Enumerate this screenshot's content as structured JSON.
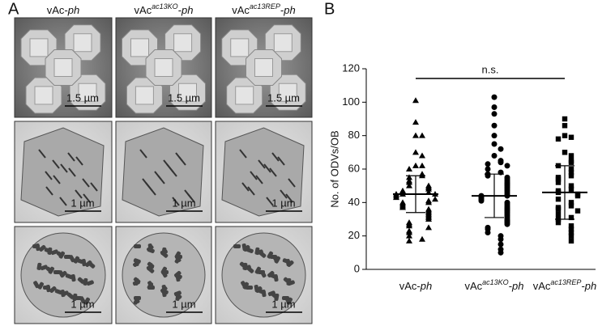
{
  "panel_a": {
    "label": "A",
    "columns": [
      {
        "base": "vAc",
        "suffix": "-",
        "italic": "ph"
      },
      {
        "base": "vAc",
        "sup": "ac13KO",
        "suffix": "-",
        "italic": "ph"
      },
      {
        "base": "vAc",
        "sup": "ac13REP",
        "suffix": "-",
        "italic": "ph"
      }
    ],
    "scale_bars": [
      "1.5 µm",
      "1 µm",
      "1 µm"
    ]
  },
  "chart_data": {
    "type": "scatter",
    "panel_label": "B",
    "y_label": "No. of ODVs/OB",
    "annotation": "n.s.",
    "categories": [
      {
        "base": "vAc",
        "suffix": "-",
        "italic": "ph"
      },
      {
        "base": "vAc",
        "sup": "ac13KO",
        "suffix": "-",
        "italic": "ph"
      },
      {
        "base": "vAc",
        "sup": "ac13REP",
        "suffix": "-",
        "italic": "ph"
      }
    ],
    "ylim": [
      0,
      120
    ],
    "yticks": [
      0,
      20,
      40,
      60,
      80,
      100,
      120
    ],
    "series": [
      {
        "marker": "triangle",
        "color": "#000000",
        "mean": 45,
        "sd": 11,
        "values": [
          101,
          88,
          80,
          80,
          70,
          68,
          62,
          62,
          60,
          57,
          56,
          55,
          53,
          52,
          50,
          50,
          49,
          48,
          47,
          46,
          46,
          45,
          45,
          45,
          44,
          43,
          42,
          41,
          40,
          40,
          39,
          38,
          37,
          36,
          35,
          34,
          33,
          32,
          31,
          30,
          28,
          27,
          26,
          25,
          23,
          22,
          20,
          18,
          17
        ]
      },
      {
        "marker": "circle",
        "color": "#000000",
        "mean": 44,
        "sd": 13,
        "values": [
          103,
          97,
          93,
          86,
          80,
          75,
          72,
          68,
          65,
          64,
          63,
          62,
          60,
          58,
          57,
          56,
          55,
          54,
          53,
          52,
          51,
          50,
          49,
          48,
          47,
          46,
          45,
          44,
          44,
          43,
          42,
          41,
          40,
          39,
          38,
          37,
          36,
          35,
          34,
          33,
          32,
          31,
          30,
          29,
          28,
          27,
          25,
          24,
          22,
          20,
          18,
          15,
          12,
          10
        ]
      },
      {
        "marker": "square",
        "color": "#000000",
        "mean": 46,
        "sd": 16,
        "values": [
          90,
          86,
          80,
          79,
          78,
          70,
          68,
          65,
          64,
          62,
          60,
          58,
          56,
          55,
          54,
          52,
          50,
          48,
          47,
          46,
          45,
          44,
          42,
          40,
          38,
          37,
          36,
          35,
          33,
          31,
          30,
          28,
          26,
          24,
          22,
          20,
          17
        ]
      }
    ]
  }
}
